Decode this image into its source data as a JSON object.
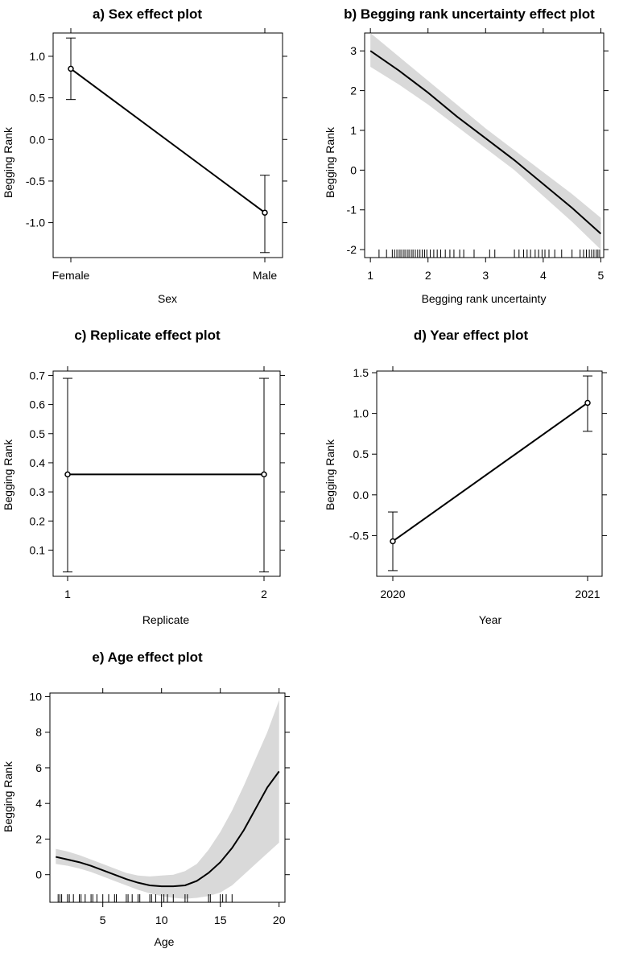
{
  "figure": {
    "panels": [
      {
        "id": "a",
        "title": "a) Sex effect plot"
      },
      {
        "id": "b",
        "title": "b) Begging rank uncertainty effect plot"
      },
      {
        "id": "c",
        "title": "c) Replicate effect plot"
      },
      {
        "id": "d",
        "title": "d) Year effect plot"
      },
      {
        "id": "e",
        "title": "e) Age effect plot"
      }
    ]
  },
  "chart_data": [
    {
      "id": "a",
      "type": "line",
      "kind": "categorical",
      "title": "a) Sex effect plot",
      "xlabel": "Sex",
      "ylabel": "Begging Rank",
      "categories": [
        "Female",
        "Male"
      ],
      "x_ticks": [
        "Female",
        "Male"
      ],
      "values": [
        0.85,
        -0.88
      ],
      "lower": [
        0.48,
        -1.36
      ],
      "upper": [
        1.22,
        -0.43
      ],
      "ylim": [
        -1.42,
        1.28
      ],
      "y_ticks": [
        1.0,
        0.5,
        0.0,
        -0.5,
        -1.0
      ],
      "y_tick_labels": [
        "1.0",
        "0.5",
        "0.0",
        "-0.5",
        "-1.0"
      ]
    },
    {
      "id": "b",
      "type": "line",
      "kind": "continuous",
      "title": "b) Begging rank uncertainty effect plot",
      "xlabel": "Begging rank uncertainty",
      "ylabel": "Begging Rank",
      "xlim": [
        0.9,
        5.05
      ],
      "ylim": [
        -2.2,
        3.45
      ],
      "x_ticks": [
        1,
        2,
        3,
        4,
        5
      ],
      "x_tick_labels": [
        "1",
        "2",
        "3",
        "4",
        "5"
      ],
      "y_ticks": [
        3,
        2,
        1,
        0,
        -1,
        -2
      ],
      "y_tick_labels": [
        "3",
        "2",
        "1",
        "0",
        "-1",
        "-2"
      ],
      "x": [
        1,
        1.5,
        2,
        2.5,
        3,
        3.5,
        4,
        4.5,
        5
      ],
      "y": [
        3.0,
        2.5,
        1.95,
        1.35,
        0.8,
        0.25,
        -0.35,
        -0.95,
        -1.6
      ],
      "lower": [
        2.6,
        2.15,
        1.65,
        1.1,
        0.55,
        0.0,
        -0.65,
        -1.3,
        -2.0
      ],
      "upper": [
        3.45,
        2.85,
        2.25,
        1.65,
        1.05,
        0.5,
        -0.05,
        -0.6,
        -1.2
      ],
      "rug": [
        1.15,
        1.28,
        1.38,
        1.42,
        1.46,
        1.5,
        1.53,
        1.57,
        1.6,
        1.64,
        1.67,
        1.71,
        1.74,
        1.78,
        1.82,
        1.86,
        1.9,
        1.94,
        1.98,
        2.04,
        2.1,
        2.16,
        2.22,
        2.3,
        2.38,
        2.45,
        2.55,
        2.62,
        2.8,
        3.07,
        3.16,
        3.5,
        3.58,
        3.66,
        3.72,
        3.78,
        3.86,
        3.92,
        3.98,
        4.03,
        4.1,
        4.2,
        4.32,
        4.5,
        4.64,
        4.7,
        4.75,
        4.8,
        4.84,
        4.88,
        4.92,
        4.95,
        4.98
      ]
    },
    {
      "id": "c",
      "type": "line",
      "kind": "categorical",
      "title": "c) Replicate effect plot",
      "xlabel": "Replicate",
      "ylabel": "Begging Rank",
      "categories": [
        "1",
        "2"
      ],
      "x_ticks": [
        "1",
        "2"
      ],
      "values": [
        0.36,
        0.36
      ],
      "lower": [
        0.025,
        0.025
      ],
      "upper": [
        0.69,
        0.69
      ],
      "ylim": [
        0.01,
        0.715
      ],
      "y_ticks": [
        0.7,
        0.6,
        0.5,
        0.4,
        0.3,
        0.2,
        0.1
      ],
      "y_tick_labels": [
        "0.7",
        "0.6",
        "0.5",
        "0.4",
        "0.3",
        "0.2",
        "0.1"
      ]
    },
    {
      "id": "d",
      "type": "line",
      "kind": "categorical",
      "title": "d) Year effect plot",
      "xlabel": "Year",
      "ylabel": "Begging Rank",
      "categories": [
        "2020",
        "2021"
      ],
      "x_ticks": [
        "2020",
        "2021"
      ],
      "values": [
        -0.57,
        1.13
      ],
      "lower": [
        -0.93,
        0.78
      ],
      "upper": [
        -0.21,
        1.46
      ],
      "ylim": [
        -1.0,
        1.52
      ],
      "y_ticks": [
        1.5,
        1.0,
        0.5,
        0.0,
        -0.5
      ],
      "y_tick_labels": [
        "1.5",
        "1.0",
        "0.5",
        "0.0",
        "-0.5"
      ]
    },
    {
      "id": "e",
      "type": "line",
      "kind": "continuous",
      "title": "e) Age effect plot",
      "xlabel": "Age",
      "ylabel": "Begging Rank",
      "xlim": [
        0.5,
        20.5
      ],
      "ylim": [
        -1.55,
        10.2
      ],
      "x_ticks": [
        5,
        10,
        15,
        20
      ],
      "x_tick_labels": [
        "5",
        "10",
        "15",
        "20"
      ],
      "y_ticks": [
        10,
        8,
        6,
        4,
        2,
        0
      ],
      "y_tick_labels": [
        "10",
        "8",
        "6",
        "4",
        "2",
        "0"
      ],
      "top_ticks": [
        5,
        10,
        15,
        20
      ],
      "x": [
        1,
        2,
        3,
        4,
        5,
        6,
        7,
        8,
        9,
        10,
        11,
        12,
        13,
        14,
        15,
        16,
        17,
        18,
        19,
        20
      ],
      "y": [
        1.0,
        0.85,
        0.7,
        0.5,
        0.25,
        0.0,
        -0.25,
        -0.45,
        -0.6,
        -0.65,
        -0.65,
        -0.6,
        -0.35,
        0.1,
        0.7,
        1.5,
        2.5,
        3.7,
        4.9,
        5.8
      ],
      "lower": [
        0.6,
        0.5,
        0.35,
        0.15,
        -0.1,
        -0.35,
        -0.6,
        -0.85,
        -1.05,
        -1.2,
        -1.3,
        -1.35,
        -1.3,
        -1.2,
        -1.0,
        -0.6,
        0.0,
        0.6,
        1.2,
        1.8
      ],
      "upper": [
        1.45,
        1.3,
        1.1,
        0.85,
        0.6,
        0.35,
        0.1,
        -0.05,
        -0.1,
        -0.05,
        0.0,
        0.2,
        0.6,
        1.4,
        2.4,
        3.6,
        5.0,
        6.5,
        8.0,
        9.8
      ],
      "rug": [
        1.2,
        1.35,
        1.5,
        2.0,
        2.15,
        2.5,
        3.0,
        3.15,
        3.5,
        4.0,
        4.15,
        4.5,
        5.0,
        5.5,
        6.0,
        6.15,
        7.0,
        7.15,
        7.5,
        8.0,
        8.15,
        9.0,
        9.15,
        9.5,
        10.0,
        10.2,
        10.5,
        11.0,
        12.0,
        12.2,
        14.0,
        14.15,
        15.0,
        15.2,
        15.5,
        16.0
      ]
    }
  ]
}
